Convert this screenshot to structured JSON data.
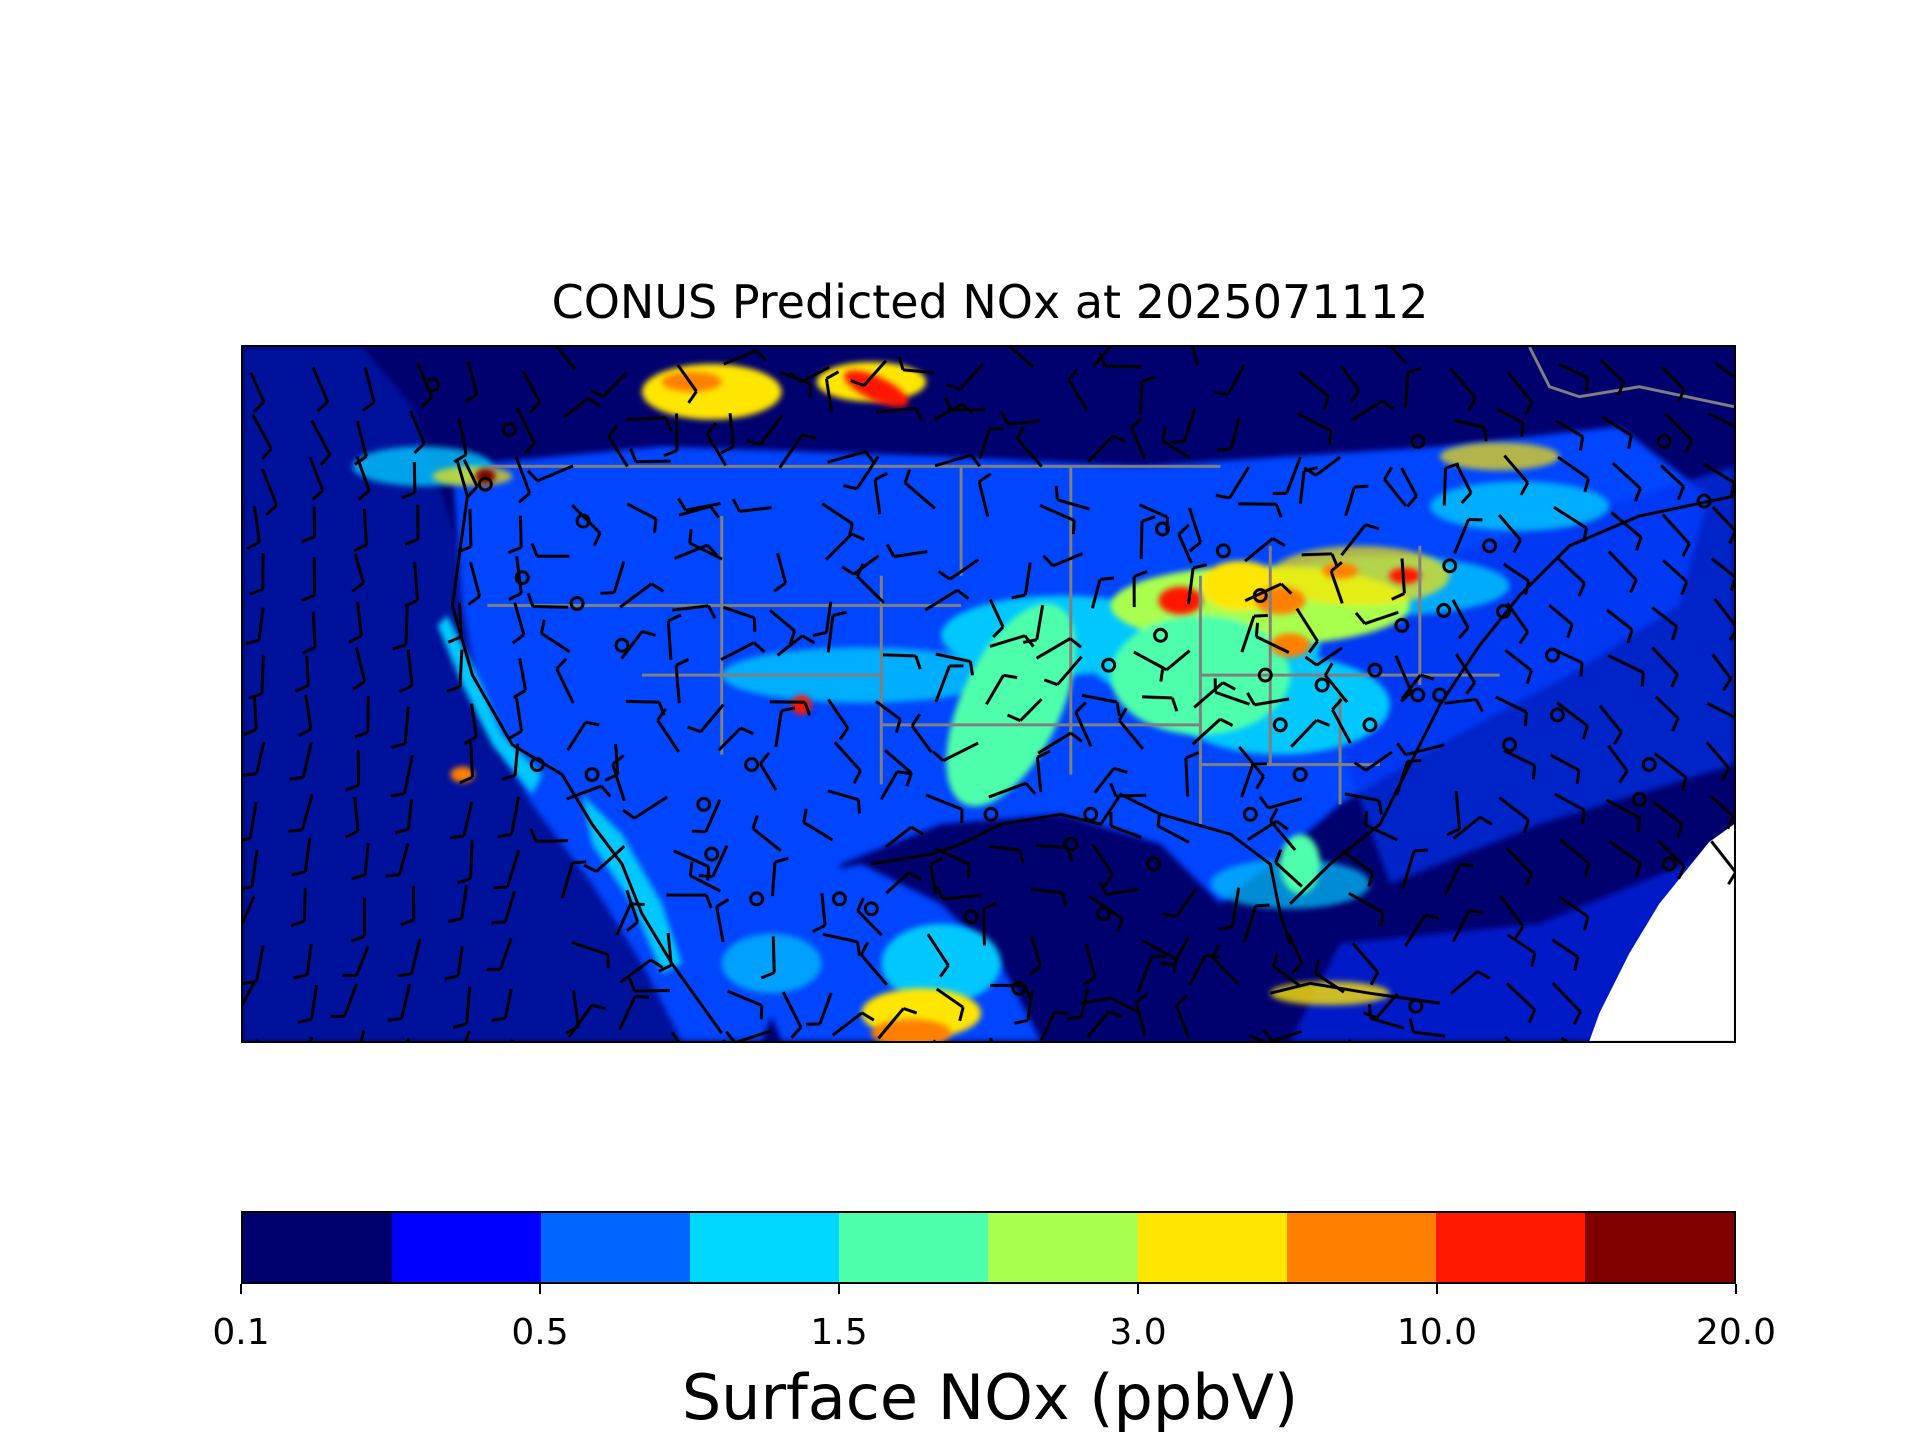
{
  "map": {
    "title": "CONUS Predicted NOx at 2025071112"
  },
  "colorbar": {
    "label": "Surface NOx (ppbV)",
    "colors": [
      "#00006f",
      "#0000ff",
      "#0066ff",
      "#00d8ff",
      "#4dffaa",
      "#a8ff4d",
      "#ffe600",
      "#ff8000",
      "#ff1800",
      "#800000"
    ],
    "tick_labels": [
      "0.1",
      "0.5",
      "1.5",
      "3.0",
      "10.0",
      "20.0"
    ],
    "tick_boundary_index": [
      0,
      2,
      4,
      6,
      8,
      10
    ]
  }
}
